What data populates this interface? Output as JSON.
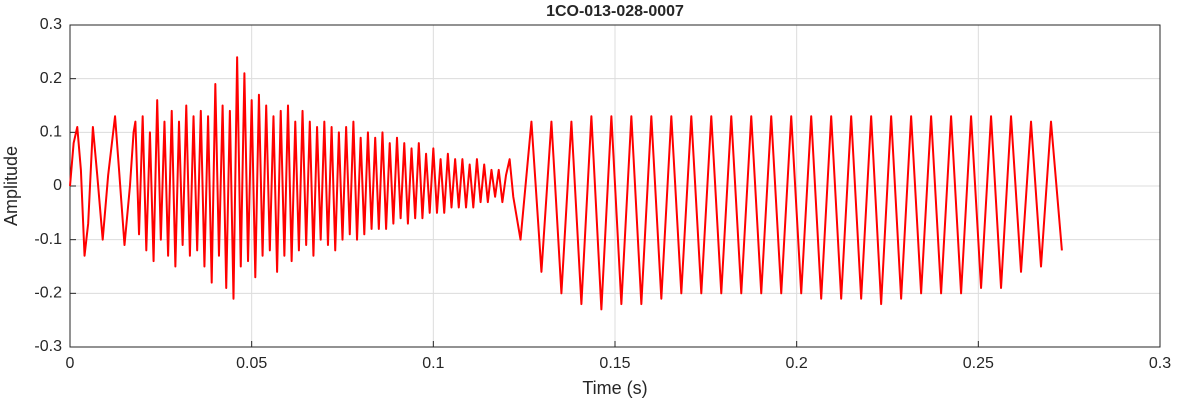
{
  "chart_data": {
    "type": "line",
    "title": "1CO-013-028-0007",
    "x_label": "Time (s)",
    "y_label": "Amplitude",
    "color": "#ff0000",
    "grid": true,
    "xlim": [
      0,
      0.3
    ],
    "ylim": [
      -0.3,
      0.3
    ],
    "xticks": [
      0,
      0.05,
      0.1,
      0.15,
      0.2,
      0.25,
      0.3
    ],
    "yticks": [
      -0.3,
      -0.2,
      -0.1,
      0,
      0.1,
      0.2,
      0.3
    ],
    "x": [
      0,
      0.001,
      0.002,
      0.003,
      0.004,
      0.005,
      0.0063,
      0.0075,
      0.009,
      0.0105,
      0.0124,
      0.0135,
      0.015,
      0.0165,
      0.0175,
      0.018,
      0.019,
      0.02,
      0.021,
      0.022,
      0.023,
      0.024,
      0.025,
      0.026,
      0.027,
      0.028,
      0.029,
      0.03,
      0.031,
      0.032,
      0.033,
      0.034,
      0.035,
      0.036,
      0.037,
      0.038,
      0.039,
      0.04,
      0.041,
      0.042,
      0.043,
      0.044,
      0.045,
      0.046,
      0.047,
      0.048,
      0.049,
      0.05,
      0.051,
      0.052,
      0.053,
      0.054,
      0.055,
      0.056,
      0.057,
      0.058,
      0.059,
      0.06,
      0.061,
      0.062,
      0.063,
      0.064,
      0.065,
      0.066,
      0.067,
      0.068,
      0.069,
      0.07,
      0.071,
      0.072,
      0.073,
      0.074,
      0.075,
      0.076,
      0.077,
      0.078,
      0.079,
      0.08,
      0.081,
      0.082,
      0.083,
      0.084,
      0.085,
      0.086,
      0.087,
      0.088,
      0.089,
      0.09,
      0.091,
      0.092,
      0.093,
      0.094,
      0.095,
      0.096,
      0.097,
      0.098,
      0.099,
      0.1,
      0.101,
      0.102,
      0.103,
      0.104,
      0.105,
      0.106,
      0.107,
      0.108,
      0.109,
      0.11,
      0.111,
      0.112,
      0.113,
      0.114,
      0.115,
      0.116,
      0.117,
      0.118,
      0.119,
      0.12,
      0.121,
      0.122,
      0.124,
      0.127,
      0.12975,
      0.1325,
      0.13525,
      0.138,
      0.14075,
      0.1435,
      0.14625,
      0.149,
      0.15175,
      0.1545,
      0.15725,
      0.16,
      0.16275,
      0.1655,
      0.16825,
      0.171,
      0.17375,
      0.1765,
      0.17925,
      0.182,
      0.18475,
      0.1875,
      0.19025,
      0.193,
      0.19575,
      0.1985,
      0.20125,
      0.204,
      0.20675,
      0.2095,
      0.21225,
      0.215,
      0.21775,
      0.2205,
      0.22325,
      0.226,
      0.22875,
      0.2315,
      0.23425,
      0.237,
      0.23975,
      0.2425,
      0.24525,
      0.248,
      0.25075,
      0.2535,
      0.25625,
      0.259,
      0.26175,
      0.2645,
      0.26725,
      0.27,
      0.273
    ],
    "values": [
      0,
      0.08,
      0.11,
      0.03,
      -0.13,
      -0.07,
      0.11,
      0.02,
      -0.1,
      0.02,
      0.13,
      0.03,
      -0.11,
      0.0,
      0.1,
      0.12,
      -0.09,
      0.13,
      -0.12,
      0.1,
      -0.14,
      0.16,
      -0.1,
      0.12,
      -0.13,
      0.14,
      -0.15,
      0.12,
      -0.11,
      0.15,
      -0.13,
      0.13,
      -0.12,
      0.14,
      -0.15,
      0.13,
      -0.18,
      0.19,
      -0.13,
      0.15,
      -0.19,
      0.14,
      -0.21,
      0.24,
      -0.15,
      0.21,
      -0.14,
      0.16,
      -0.17,
      0.17,
      -0.13,
      0.15,
      -0.12,
      0.13,
      -0.16,
      0.14,
      -0.13,
      0.15,
      -0.14,
      0.12,
      -0.12,
      0.14,
      -0.11,
      0.12,
      -0.13,
      0.11,
      -0.1,
      0.12,
      -0.11,
      0.11,
      -0.12,
      0.1,
      -0.1,
      0.11,
      -0.09,
      0.12,
      -0.1,
      0.09,
      -0.09,
      0.1,
      -0.08,
      0.09,
      -0.08,
      0.1,
      -0.08,
      0.08,
      -0.07,
      0.09,
      -0.06,
      0.08,
      -0.07,
      0.07,
      -0.06,
      0.08,
      -0.06,
      0.06,
      -0.05,
      0.07,
      -0.05,
      0.05,
      -0.05,
      0.06,
      -0.04,
      0.05,
      -0.04,
      0.05,
      -0.04,
      0.04,
      -0.04,
      0.05,
      -0.03,
      0.04,
      -0.03,
      0.03,
      -0.02,
      0.03,
      -0.03,
      0.02,
      0.05,
      -0.02,
      -0.1,
      0.12,
      -0.16,
      0.12,
      -0.2,
      0.12,
      -0.22,
      0.13,
      -0.23,
      0.13,
      -0.22,
      0.13,
      -0.22,
      0.13,
      -0.21,
      0.13,
      -0.2,
      0.13,
      -0.2,
      0.13,
      -0.2,
      0.13,
      -0.2,
      0.13,
      -0.2,
      0.13,
      -0.2,
      0.13,
      -0.2,
      0.13,
      -0.21,
      0.13,
      -0.21,
      0.13,
      -0.21,
      0.13,
      -0.22,
      0.13,
      -0.21,
      0.13,
      -0.2,
      0.13,
      -0.2,
      0.13,
      -0.2,
      0.13,
      -0.19,
      0.13,
      -0.19,
      0.13,
      -0.16,
      0.12,
      -0.15,
      0.12,
      -0.12
    ]
  }
}
